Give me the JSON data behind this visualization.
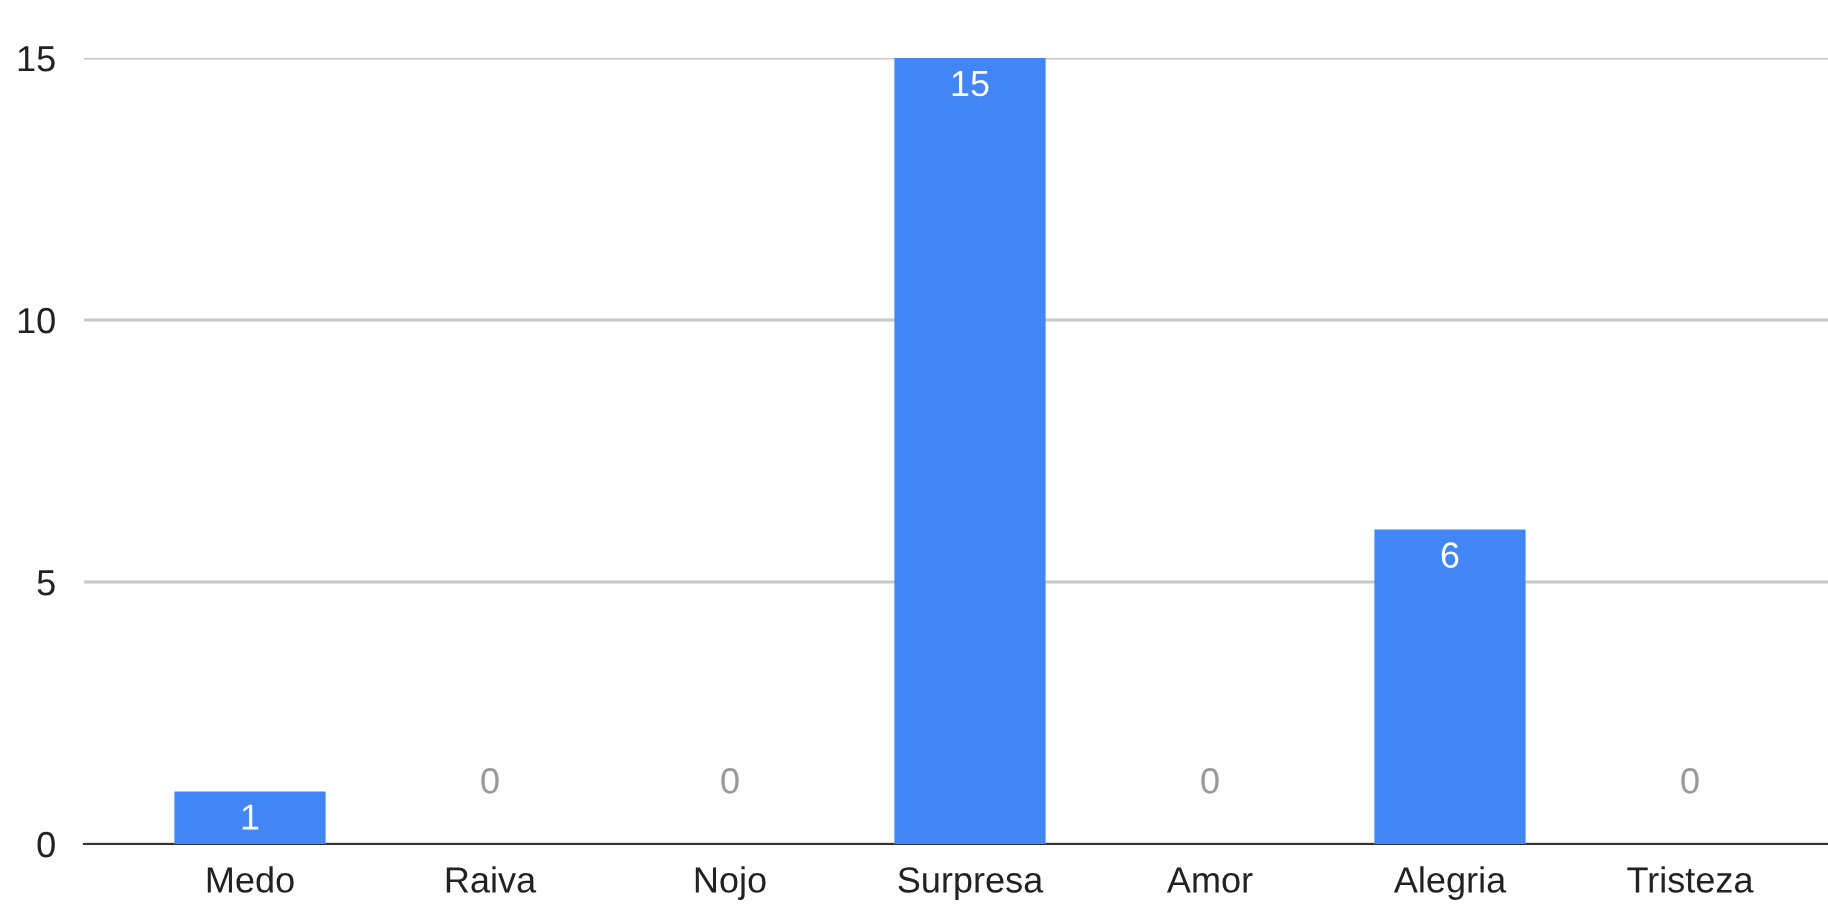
{
  "chart_data": {
    "type": "bar",
    "categories": [
      "Medo",
      "Raiva",
      "Nojo",
      "Surpresa",
      "Amor",
      "Alegria",
      "Tristeza"
    ],
    "values": [
      1,
      0,
      0,
      15,
      0,
      6,
      0
    ],
    "color": "#4285f4",
    "ylim": [
      0,
      15
    ],
    "yticks": [
      0,
      5,
      10,
      15
    ],
    "grid": "y",
    "data_labels": true
  }
}
